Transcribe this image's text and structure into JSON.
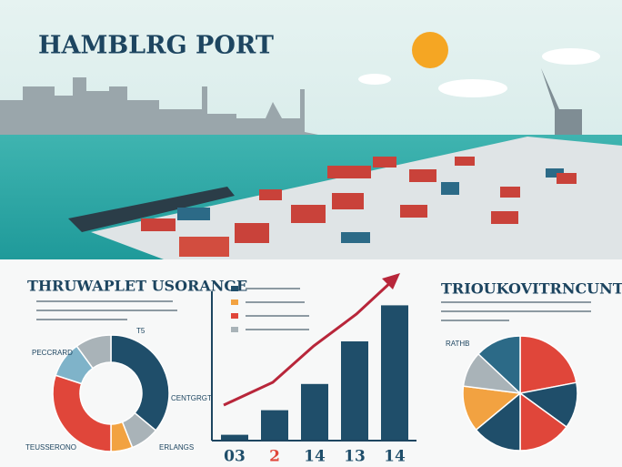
{
  "header": {
    "title": "HAMBLRG PORT"
  },
  "left_panel": {
    "title": "THRUWAPLET USORANGE",
    "labels": [
      "T5",
      "PECCRARD",
      "CENTGRGT",
      "TEUSSERONO",
      "ERLANGS"
    ],
    "segments": [
      {
        "value": 36,
        "color": "#1f4e6a"
      },
      {
        "value": 8,
        "color": "#a9b3b8"
      },
      {
        "value": 6,
        "color": "#f2a241"
      },
      {
        "value": 30,
        "color": "#e0463a"
      },
      {
        "value": 10,
        "color": "#7fb3c9"
      },
      {
        "value": 10,
        "color": "#a9b3b8"
      }
    ]
  },
  "middle_panel": {
    "bars": [
      {
        "label": "03",
        "value": 3,
        "color": "#1f4e6a",
        "label_color": "#1f4e6a"
      },
      {
        "label": "2",
        "value": 18,
        "color": "#1f4e6a",
        "label_color": "#e0463a"
      },
      {
        "label": "14",
        "value": 34,
        "color": "#1f4e6a",
        "label_color": "#1f4e6a"
      },
      {
        "label": "13",
        "value": 60,
        "color": "#1f4e6a",
        "label_color": "#1f4e6a"
      },
      {
        "label": "14",
        "value": 82,
        "color": "#1f4e6a",
        "label_color": "#1f4e6a"
      }
    ]
  },
  "right_panel": {
    "title": "TRIOUKOVITRNCUNTER)",
    "label": "RATHB",
    "segments": [
      {
        "value": 22,
        "color": "#e0463a"
      },
      {
        "value": 13,
        "color": "#1f4e6a"
      },
      {
        "value": 15,
        "color": "#e0463a"
      },
      {
        "value": 14,
        "color": "#1f4e6a"
      },
      {
        "value": 13,
        "color": "#f2a241"
      },
      {
        "value": 10,
        "color": "#a9b3b8"
      },
      {
        "value": 13,
        "color": "#2c6a87"
      }
    ]
  }
}
